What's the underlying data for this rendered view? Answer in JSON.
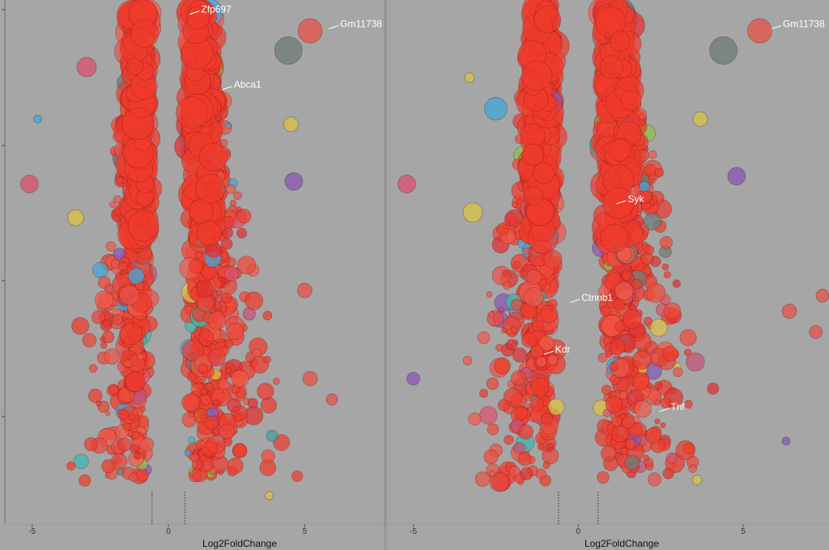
{
  "chart_data": [
    {
      "type": "scatter",
      "xlabel": "Log2FoldChange",
      "xticks": [
        "-5",
        "0",
        "5"
      ],
      "xlim": [
        -6.0,
        7.9
      ],
      "threshold_lines": [
        -0.6,
        0.6
      ],
      "labels": [
        {
          "text": "Zfp697",
          "x": 1.2,
          "y": 0.985
        },
        {
          "text": "Gm11738",
          "x": 6.3,
          "y": 0.957
        },
        {
          "text": "Abca1",
          "x": 2.4,
          "y": 0.84
        }
      ],
      "outliers": [
        {
          "x": -5.1,
          "y": 0.655,
          "color": "#d9556e",
          "s": 11
        },
        {
          "x": -4.8,
          "y": 0.78,
          "color": "#45a6d8",
          "s": 5
        },
        {
          "x": -3.4,
          "y": 0.59,
          "color": "#d9c24a",
          "s": 10
        },
        {
          "x": -3.0,
          "y": 0.88,
          "color": "#d9556e",
          "s": 12
        },
        {
          "x": 4.4,
          "y": 0.912,
          "color": "#6f7c7a",
          "s": 17
        },
        {
          "x": 5.2,
          "y": 0.95,
          "color": "#e8554a",
          "s": 15
        },
        {
          "x": 4.5,
          "y": 0.77,
          "color": "#d9c24a",
          "s": 9
        },
        {
          "x": 5.0,
          "y": 0.45,
          "color": "#e8554a",
          "s": 9
        },
        {
          "x": 5.2,
          "y": 0.28,
          "color": "#e8554a",
          "s": 9
        },
        {
          "x": 4.6,
          "y": 0.66,
          "color": "#8a5ab5",
          "s": 11
        },
        {
          "x": 6.0,
          "y": 0.24,
          "color": "#e8554a",
          "s": 7
        },
        {
          "x": 3.8,
          "y": 0.17,
          "color": "#4aa3a0",
          "s": 7
        },
        {
          "x": 3.7,
          "y": 0.055,
          "color": "#d9c24a",
          "s": 5
        }
      ]
    },
    {
      "type": "scatter",
      "xlabel": "Log2FoldChange",
      "xticks": [
        "-5",
        "0",
        "5"
      ],
      "xlim": [
        -5.8,
        7.6
      ],
      "threshold_lines": [
        -0.6,
        0.6
      ],
      "labels": [
        {
          "text": "Gm11738",
          "x": 6.2,
          "y": 0.957
        },
        {
          "text": "Syk",
          "x": 1.5,
          "y": 0.62
        },
        {
          "text": "Ctnnb1",
          "x": 0.1,
          "y": 0.43
        },
        {
          "text": "Kdr",
          "x": -0.7,
          "y": 0.33
        },
        {
          "text": "Tnf",
          "x": 2.8,
          "y": 0.22
        }
      ],
      "outliers": [
        {
          "x": -5.2,
          "y": 0.655,
          "color": "#d9556e",
          "s": 11
        },
        {
          "x": -5.0,
          "y": 0.28,
          "color": "#8a5ab5",
          "s": 8
        },
        {
          "x": -3.2,
          "y": 0.6,
          "color": "#d9c24a",
          "s": 12
        },
        {
          "x": -3.3,
          "y": 0.86,
          "color": "#d9c24a",
          "s": 6
        },
        {
          "x": -2.5,
          "y": 0.8,
          "color": "#45a6d8",
          "s": 14
        },
        {
          "x": 4.4,
          "y": 0.912,
          "color": "#6f7c7a",
          "s": 17
        },
        {
          "x": 5.5,
          "y": 0.95,
          "color": "#e8554a",
          "s": 15
        },
        {
          "x": 4.8,
          "y": 0.67,
          "color": "#8a5ab5",
          "s": 11
        },
        {
          "x": 3.7,
          "y": 0.78,
          "color": "#d9c24a",
          "s": 9
        },
        {
          "x": 6.4,
          "y": 0.41,
          "color": "#e8554a",
          "s": 9
        },
        {
          "x": 7.4,
          "y": 0.44,
          "color": "#e8554a",
          "s": 8
        },
        {
          "x": 6.3,
          "y": 0.16,
          "color": "#8a5ab5",
          "s": 5
        },
        {
          "x": 3.6,
          "y": 0.085,
          "color": "#d9c24a",
          "s": 6
        },
        {
          "x": 7.2,
          "y": 0.37,
          "color": "#e8554a",
          "s": 8
        }
      ]
    }
  ]
}
